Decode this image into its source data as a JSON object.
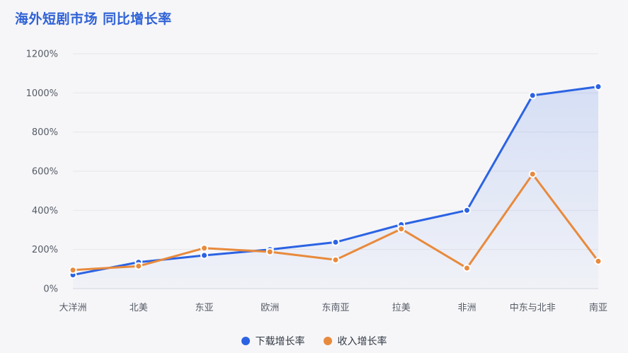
{
  "header": {
    "title": "海外短剧市场 同比增长率"
  },
  "legend": {
    "items": [
      {
        "label": "下载增长率",
        "color": "#2b63e3"
      },
      {
        "label": "收入增长率",
        "color": "#e88a3c"
      }
    ]
  },
  "chart_data": {
    "type": "line",
    "title": "海外短剧市场 同比增长率",
    "xlabel": "",
    "ylabel": "",
    "categories": [
      "大洋洲",
      "北美",
      "东亚",
      "欧洲",
      "东南亚",
      "拉美",
      "非洲",
      "中东与北非",
      "南亚"
    ],
    "y_ticks": [
      "0%",
      "200%",
      "400%",
      "600%",
      "800%",
      "1000%",
      "1200%"
    ],
    "ylim": [
      0,
      1200
    ],
    "grid": true,
    "legend_position": "bottom",
    "series": [
      {
        "name": "下载增长率",
        "color": "#2b63e3",
        "area_fill": true,
        "values": [
          70,
          135,
          170,
          200,
          237,
          327,
          400,
          987,
          1032
        ]
      },
      {
        "name": "收入增长率",
        "color": "#e88a3c",
        "area_fill": false,
        "values": [
          95,
          115,
          207,
          188,
          147,
          305,
          105,
          585,
          140
        ]
      }
    ]
  }
}
